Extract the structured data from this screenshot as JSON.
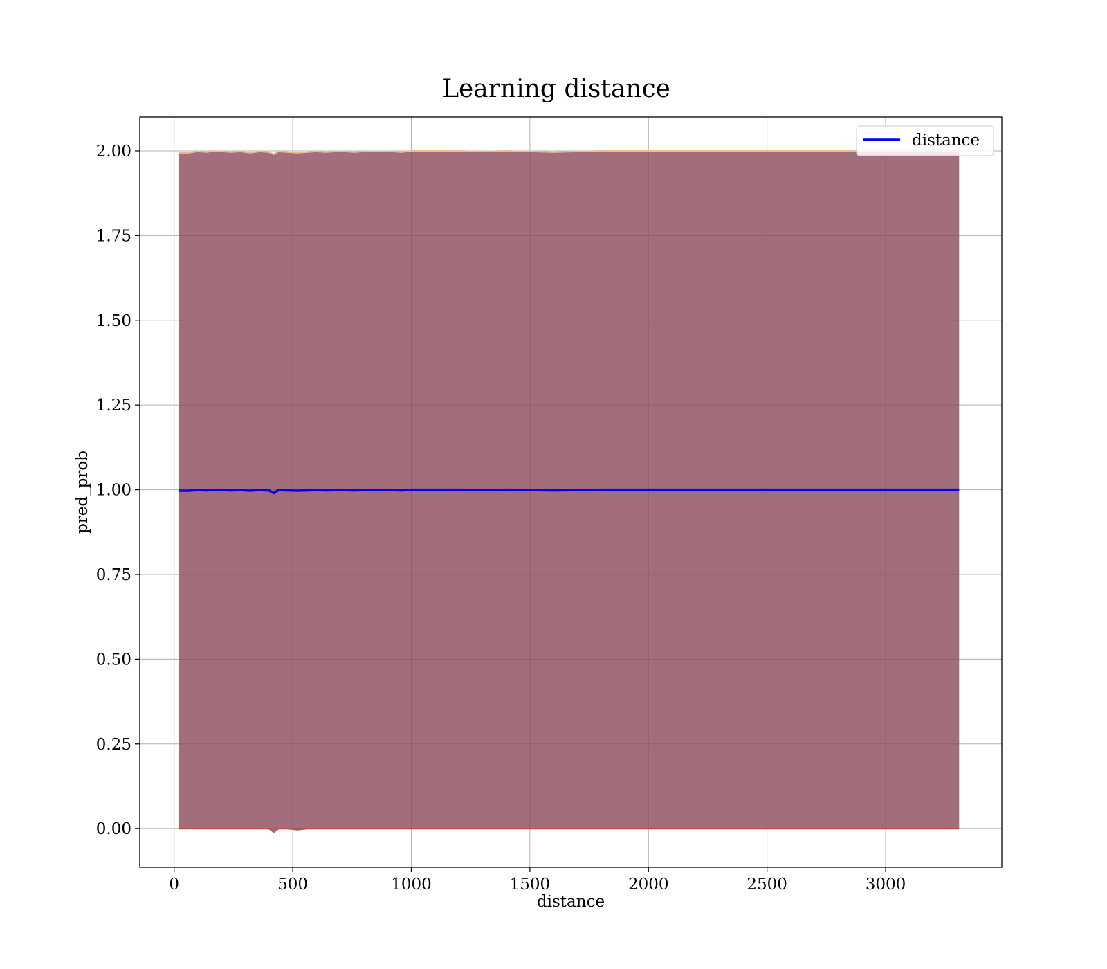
{
  "chart_data": {
    "type": "line",
    "title": "Learning distance",
    "xlabel": "distance",
    "ylabel": "pred_prob",
    "xlim": [
      -145,
      3490
    ],
    "ylim": [
      -0.114,
      2.1
    ],
    "xticks": [
      0,
      500,
      1000,
      1500,
      2000,
      2500,
      3000
    ],
    "xtick_labels": [
      "0",
      "500",
      "1000",
      "1500",
      "2000",
      "2500",
      "3000"
    ],
    "yticks": [
      0,
      0.25,
      0.5,
      0.75,
      1.0,
      1.25,
      1.5,
      1.75,
      2.0
    ],
    "ytick_labels": [
      "0.00",
      "0.25",
      "0.50",
      "0.75",
      "1.00",
      "1.25",
      "1.50",
      "1.75",
      "2.00"
    ],
    "grid": true,
    "legend_position": "top-right",
    "colors": {
      "line": "#0000ff",
      "band_fill": "#8b4a5a",
      "band_edge_upper": "#f0b98a",
      "band_edge_lower": "#c0504d",
      "grid": "#b0b0b0"
    },
    "series": [
      {
        "name": "distance",
        "x": [
          20,
          60,
          100,
          140,
          160,
          200,
          240,
          280,
          320,
          360,
          400,
          420,
          440,
          480,
          520,
          560,
          600,
          640,
          680,
          720,
          760,
          800,
          840,
          880,
          920,
          960,
          1000,
          1100,
          1200,
          1300,
          1400,
          1500,
          1600,
          1700,
          1800,
          2000,
          2500,
          3000,
          3310
        ],
        "values": [
          0.997,
          0.997,
          0.999,
          0.998,
          1.0,
          0.999,
          0.998,
          0.999,
          0.997,
          0.999,
          0.998,
          0.99,
          0.999,
          0.998,
          0.997,
          0.998,
          0.999,
          0.998,
          0.999,
          0.999,
          0.998,
          0.999,
          0.999,
          0.999,
          0.999,
          0.998,
          1.0,
          1.0,
          1.0,
          0.999,
          1.0,
          0.999,
          0.998,
          0.999,
          1.0,
          1.0,
          1.0,
          1.0,
          1.0
        ]
      }
    ],
    "band": {
      "x": [
        20,
        60,
        100,
        140,
        160,
        200,
        240,
        280,
        320,
        360,
        400,
        420,
        440,
        480,
        520,
        560,
        600,
        640,
        680,
        720,
        760,
        800,
        840,
        880,
        920,
        960,
        1000,
        1100,
        1200,
        1300,
        1400,
        1500,
        1600,
        1700,
        1800,
        2000,
        2500,
        3000,
        3310
      ],
      "upper": [
        1.994,
        1.994,
        1.998,
        1.996,
        2.0,
        1.998,
        1.996,
        1.998,
        1.994,
        1.998,
        1.996,
        1.99,
        1.998,
        1.996,
        1.994,
        1.996,
        1.998,
        1.996,
        1.998,
        1.998,
        1.996,
        1.998,
        1.998,
        1.998,
        1.998,
        1.996,
        2.0,
        2.0,
        2.0,
        1.998,
        2.0,
        1.998,
        1.996,
        1.998,
        2.0,
        2.0,
        2.0,
        2.0,
        2.0
      ],
      "lower": [
        0.0,
        0.0,
        0.0,
        0.0,
        0.0,
        0.0,
        0.0,
        0.0,
        0.0,
        0.0,
        0.0,
        -0.01,
        0.0,
        0.0,
        -0.003,
        0.0,
        0.0,
        0.0,
        0.0,
        0.0,
        0.0,
        0.0,
        0.0,
        0.0,
        0.0,
        0.0,
        0.0,
        0.0,
        0.0,
        0.0,
        0.0,
        0.0,
        0.0,
        0.0,
        0.0,
        0.0,
        0.0,
        0.0,
        0.0
      ]
    }
  }
}
